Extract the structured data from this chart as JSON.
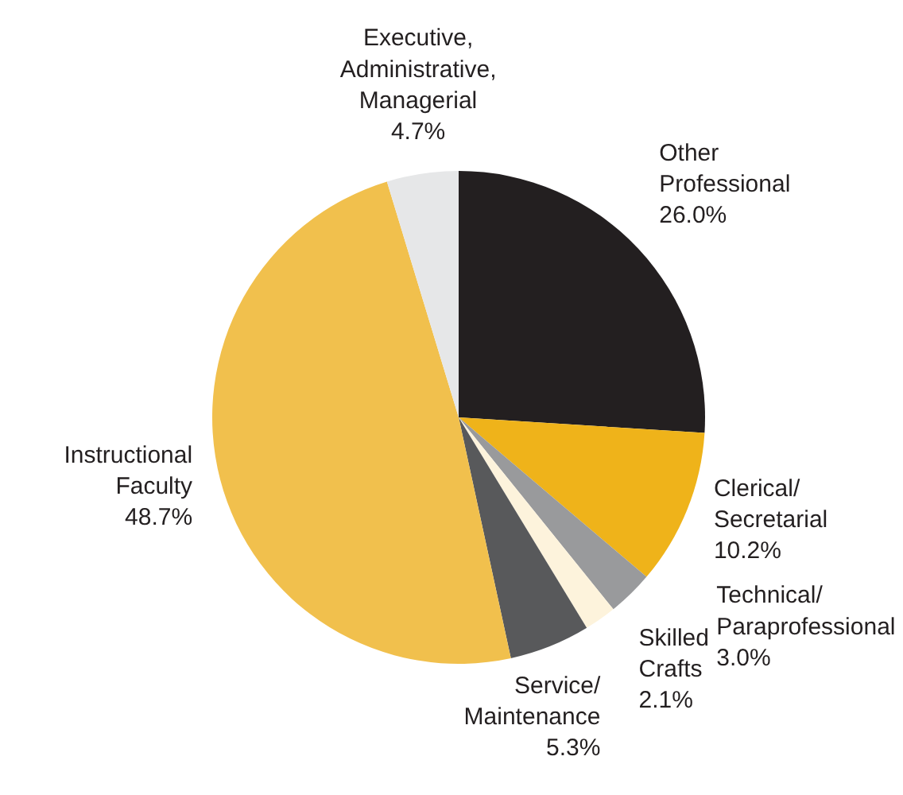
{
  "chart_data": {
    "type": "pie",
    "categories": [
      "Other Professional",
      "Clerical/Secretarial",
      "Technical/Paraprofessional",
      "Skilled Crafts",
      "Service/Maintenance",
      "Instructional Faculty",
      "Executive, Administrative, Managerial"
    ],
    "values": [
      26.0,
      10.2,
      3.0,
      2.1,
      5.3,
      48.7,
      4.7
    ],
    "value_labels": [
      "26.0%",
      "10.2%",
      "3.0%",
      "2.1%",
      "5.3%",
      "48.7%",
      "4.7%"
    ],
    "colors": [
      "#231f20",
      "#efb31a",
      "#999a9c",
      "#fdf3dc",
      "#58595b",
      "#f1c04d",
      "#e6e7e8"
    ]
  }
}
